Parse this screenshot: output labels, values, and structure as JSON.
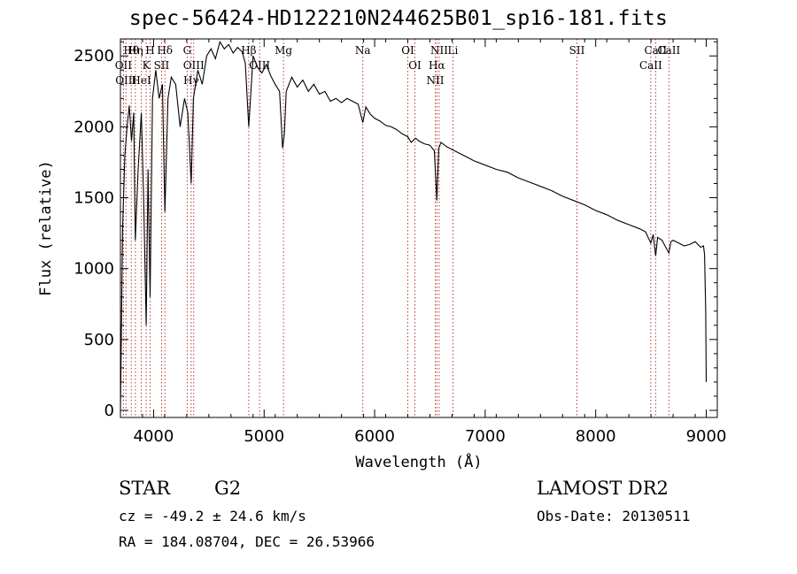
{
  "title": "spec-56424-HD122210N244625B01_sp16-181.fits",
  "chart_data": {
    "type": "line",
    "xlabel": "Wavelength (Å)",
    "ylabel": "Flux (relative)",
    "xlim": [
      3700,
      9100
    ],
    "ylim": [
      -50,
      2620
    ],
    "x_ticks": [
      4000,
      5000,
      6000,
      7000,
      8000,
      9000
    ],
    "y_ticks": [
      0,
      500,
      1000,
      1500,
      2000,
      2500
    ],
    "series": [
      {
        "x": [
          3700,
          3720,
          3740,
          3760,
          3780,
          3800,
          3820,
          3835,
          3860,
          3889,
          3910,
          3933,
          3950,
          3968,
          3990,
          4020,
          4050,
          4080,
          4102,
          4130,
          4160,
          4200,
          4240,
          4280,
          4310,
          4340,
          4360,
          4400,
          4440,
          4480,
          4520,
          4560,
          4600,
          4640,
          4680,
          4720,
          4760,
          4800,
          4830,
          4861,
          4900,
          4940,
          4980,
          5020,
          5060,
          5100,
          5140,
          5167,
          5183,
          5200,
          5250,
          5300,
          5350,
          5400,
          5450,
          5500,
          5550,
          5600,
          5650,
          5700,
          5750,
          5800,
          5850,
          5893,
          5920,
          5960,
          6000,
          6050,
          6100,
          6150,
          6200,
          6250,
          6300,
          6330,
          6370,
          6400,
          6450,
          6500,
          6540,
          6563,
          6580,
          6600,
          6650,
          6700,
          6800,
          6900,
          7000,
          7100,
          7200,
          7300,
          7400,
          7500,
          7600,
          7700,
          7800,
          7900,
          8000,
          8100,
          8200,
          8300,
          8400,
          8450,
          8498,
          8520,
          8542,
          8560,
          8600,
          8662,
          8680,
          8700,
          8750,
          8800,
          8850,
          8900,
          8950,
          8975,
          8985,
          8995,
          9000
        ],
        "y": [
          0,
          1300,
          1800,
          2000,
          2150,
          1900,
          2100,
          1200,
          1700,
          2100,
          1500,
          600,
          1700,
          800,
          2200,
          2400,
          2200,
          2300,
          1400,
          2200,
          2350,
          2300,
          2000,
          2200,
          2100,
          1600,
          2200,
          2400,
          2300,
          2500,
          2550,
          2480,
          2600,
          2550,
          2580,
          2520,
          2560,
          2530,
          2450,
          2000,
          2500,
          2420,
          2380,
          2440,
          2360,
          2300,
          2250,
          1850,
          1950,
          2250,
          2350,
          2280,
          2330,
          2250,
          2300,
          2230,
          2250,
          2180,
          2200,
          2170,
          2200,
          2180,
          2160,
          2030,
          2140,
          2090,
          2060,
          2040,
          2010,
          2000,
          1980,
          1950,
          1930,
          1890,
          1920,
          1900,
          1880,
          1870,
          1830,
          1480,
          1850,
          1890,
          1860,
          1840,
          1800,
          1760,
          1730,
          1700,
          1680,
          1640,
          1610,
          1580,
          1550,
          1510,
          1480,
          1450,
          1410,
          1380,
          1340,
          1310,
          1280,
          1260,
          1180,
          1240,
          1090,
          1220,
          1200,
          1110,
          1190,
          1200,
          1180,
          1160,
          1170,
          1190,
          1150,
          1160,
          1100,
          700,
          200
        ]
      }
    ],
    "line_markers": [
      {
        "label": "Hθ",
        "wavelength": 3798
      },
      {
        "label": "OII",
        "wavelength": 3727
      },
      {
        "label": "OIII",
        "wavelength": 3750
      },
      {
        "label": "Hη",
        "wavelength": 3835
      },
      {
        "label": "K",
        "wavelength": 3933
      },
      {
        "label": "HeI",
        "wavelength": 3889
      },
      {
        "label": "H",
        "wavelength": 3968
      },
      {
        "label": "Hδ",
        "wavelength": 4102
      },
      {
        "label": "SII",
        "wavelength": 4072
      },
      {
        "label": "G",
        "wavelength": 4304
      },
      {
        "label": "OIII",
        "wavelength": 4363
      },
      {
        "label": "Hγ",
        "wavelength": 4340
      },
      {
        "label": "Hβ",
        "wavelength": 4861
      },
      {
        "label": "OIII",
        "wavelength": 4959
      },
      {
        "label": "Mg",
        "wavelength": 5175
      },
      {
        "label": "Na",
        "wavelength": 5893
      },
      {
        "label": "OI",
        "wavelength": 6300
      },
      {
        "label": "OI",
        "wavelength": 6364
      },
      {
        "label": "NII",
        "wavelength": 6584
      },
      {
        "label": "Hα",
        "wavelength": 6563
      },
      {
        "label": "NII",
        "wavelength": 6548
      },
      {
        "label": "Li",
        "wavelength": 6708
      },
      {
        "label": "SII",
        "wavelength": 7830
      },
      {
        "label": "CaII",
        "wavelength": 8542
      },
      {
        "label": "CaII",
        "wavelength": 8662
      },
      {
        "label": "CaII",
        "wavelength": 8498
      }
    ]
  },
  "info": {
    "object_class": "STAR",
    "subclass": "G2",
    "survey": "LAMOST DR2",
    "cz": "cz = -49.2 ± 24.6 km/s",
    "obs_date": "Obs-Date: 20130511",
    "coords": "RA = 184.08704, DEC =  26.53966"
  },
  "colors": {
    "spectrum": "#000000",
    "line_marker": "#b22222",
    "axes": "#000000",
    "background": "#ffffff"
  }
}
